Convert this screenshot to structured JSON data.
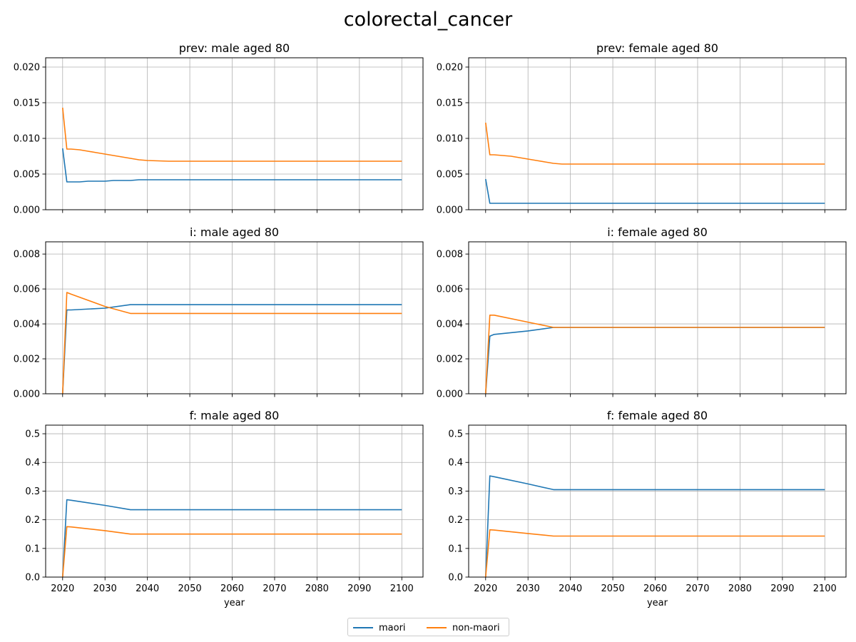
{
  "figure": {
    "suptitle": "colorectal_cancer",
    "legend": [
      {
        "label": "maori",
        "color": "#1f77b4"
      },
      {
        "label": "non-maori",
        "color": "#ff7f0e"
      }
    ]
  },
  "chart_data": [
    {
      "type": "line",
      "title": "prev: male aged 80",
      "xlabel": "",
      "ylabel": "",
      "xlim": [
        2016,
        2105
      ],
      "ylim": [
        0,
        0.0213
      ],
      "xticks": [
        2020,
        2030,
        2040,
        2050,
        2060,
        2070,
        2080,
        2090,
        2100
      ],
      "yticks": [
        0.0,
        0.005,
        0.01,
        0.015,
        0.02
      ],
      "yticklabels": [
        "0.000",
        "0.005",
        "0.010",
        "0.015",
        "0.020"
      ],
      "show_xticklabels": false,
      "grid": true,
      "x": [
        2020,
        2021,
        2022,
        2024,
        2026,
        2028,
        2030,
        2032,
        2034,
        2036,
        2038,
        2040,
        2045,
        2050,
        2060,
        2070,
        2080,
        2090,
        2100
      ],
      "series": [
        {
          "name": "maori",
          "color": "#1f77b4",
          "values": [
            0.0086,
            0.0039,
            0.0039,
            0.0039,
            0.004,
            0.004,
            0.004,
            0.0041,
            0.0041,
            0.0041,
            0.0042,
            0.0042,
            0.0042,
            0.0042,
            0.0042,
            0.0042,
            0.0042,
            0.0042,
            0.0042
          ]
        },
        {
          "name": "non-maori",
          "color": "#ff7f0e",
          "values": [
            0.0143,
            0.0085,
            0.0085,
            0.0084,
            0.0082,
            0.008,
            0.0078,
            0.0076,
            0.0074,
            0.0072,
            0.007,
            0.0069,
            0.0068,
            0.0068,
            0.0068,
            0.0068,
            0.0068,
            0.0068,
            0.0068
          ]
        }
      ]
    },
    {
      "type": "line",
      "title": "prev: female aged 80",
      "xlabel": "",
      "ylabel": "",
      "xlim": [
        2016,
        2105
      ],
      "ylim": [
        0,
        0.0213
      ],
      "xticks": [
        2020,
        2030,
        2040,
        2050,
        2060,
        2070,
        2080,
        2090,
        2100
      ],
      "yticks": [
        0.0,
        0.005,
        0.01,
        0.015,
        0.02
      ],
      "yticklabels": [
        "0.000",
        "0.005",
        "0.010",
        "0.015",
        "0.020"
      ],
      "show_xticklabels": false,
      "grid": true,
      "x": [
        2020,
        2021,
        2022,
        2024,
        2026,
        2028,
        2030,
        2032,
        2034,
        2036,
        2038,
        2040,
        2045,
        2050,
        2060,
        2070,
        2080,
        2090,
        2100
      ],
      "series": [
        {
          "name": "maori",
          "color": "#1f77b4",
          "values": [
            0.0043,
            0.0009,
            0.0009,
            0.0009,
            0.0009,
            0.0009,
            0.0009,
            0.0009,
            0.0009,
            0.0009,
            0.0009,
            0.0009,
            0.0009,
            0.0009,
            0.0009,
            0.0009,
            0.0009,
            0.0009,
            0.0009
          ]
        },
        {
          "name": "non-maori",
          "color": "#ff7f0e",
          "values": [
            0.0122,
            0.0077,
            0.0077,
            0.0076,
            0.0075,
            0.0073,
            0.0071,
            0.0069,
            0.0067,
            0.0065,
            0.0064,
            0.0064,
            0.0064,
            0.0064,
            0.0064,
            0.0064,
            0.0064,
            0.0064,
            0.0064
          ]
        }
      ]
    },
    {
      "type": "line",
      "title": "i: male aged 80",
      "xlabel": "",
      "ylabel": "",
      "xlim": [
        2016,
        2105
      ],
      "ylim": [
        0,
        0.0087
      ],
      "xticks": [
        2020,
        2030,
        2040,
        2050,
        2060,
        2070,
        2080,
        2090,
        2100
      ],
      "yticks": [
        0.0,
        0.002,
        0.004,
        0.006,
        0.008
      ],
      "yticklabels": [
        "0.000",
        "0.002",
        "0.004",
        "0.006",
        "0.008"
      ],
      "show_xticklabels": false,
      "grid": true,
      "x": [
        2020,
        2021,
        2022,
        2030,
        2036,
        2040,
        2050,
        2060,
        2070,
        2080,
        2090,
        2100
      ],
      "series": [
        {
          "name": "maori",
          "color": "#1f77b4",
          "values": [
            0.0,
            0.0048,
            0.0048,
            0.0049,
            0.0051,
            0.0051,
            0.0051,
            0.0051,
            0.0051,
            0.0051,
            0.0051,
            0.0051
          ]
        },
        {
          "name": "non-maori",
          "color": "#ff7f0e",
          "values": [
            0.0,
            0.0058,
            0.0057,
            0.005,
            0.0046,
            0.0046,
            0.0046,
            0.0046,
            0.0046,
            0.0046,
            0.0046,
            0.0046
          ]
        }
      ]
    },
    {
      "type": "line",
      "title": "i: female aged 80",
      "xlabel": "",
      "ylabel": "",
      "xlim": [
        2016,
        2105
      ],
      "ylim": [
        0,
        0.0087
      ],
      "xticks": [
        2020,
        2030,
        2040,
        2050,
        2060,
        2070,
        2080,
        2090,
        2100
      ],
      "yticks": [
        0.0,
        0.002,
        0.004,
        0.006,
        0.008
      ],
      "yticklabels": [
        "0.000",
        "0.002",
        "0.004",
        "0.006",
        "0.008"
      ],
      "show_xticklabels": false,
      "grid": true,
      "x": [
        2020,
        2021,
        2022,
        2030,
        2036,
        2040,
        2050,
        2060,
        2070,
        2080,
        2090,
        2100
      ],
      "series": [
        {
          "name": "maori",
          "color": "#1f77b4",
          "values": [
            0.0,
            0.0033,
            0.0034,
            0.0036,
            0.0038,
            0.0038,
            0.0038,
            0.0038,
            0.0038,
            0.0038,
            0.0038,
            0.0038
          ]
        },
        {
          "name": "non-maori",
          "color": "#ff7f0e",
          "values": [
            0.0,
            0.0045,
            0.0045,
            0.0041,
            0.0038,
            0.0038,
            0.0038,
            0.0038,
            0.0038,
            0.0038,
            0.0038,
            0.0038
          ]
        }
      ]
    },
    {
      "type": "line",
      "title": "f: male aged 80",
      "xlabel": "year",
      "ylabel": "",
      "xlim": [
        2016,
        2105
      ],
      "ylim": [
        0,
        0.53
      ],
      "xticks": [
        2020,
        2030,
        2040,
        2050,
        2060,
        2070,
        2080,
        2090,
        2100
      ],
      "xticklabels": [
        "2020",
        "2030",
        "2040",
        "2050",
        "2060",
        "2070",
        "2080",
        "2090",
        "2100"
      ],
      "yticks": [
        0.0,
        0.1,
        0.2,
        0.3,
        0.4,
        0.5
      ],
      "yticklabels": [
        "0.0",
        "0.1",
        "0.2",
        "0.3",
        "0.4",
        "0.5"
      ],
      "show_xticklabels": true,
      "grid": true,
      "x": [
        2020,
        2021,
        2022,
        2030,
        2036,
        2040,
        2050,
        2060,
        2070,
        2080,
        2090,
        2100
      ],
      "series": [
        {
          "name": "maori",
          "color": "#1f77b4",
          "values": [
            0.0,
            0.27,
            0.268,
            0.25,
            0.235,
            0.235,
            0.235,
            0.235,
            0.235,
            0.235,
            0.235,
            0.235
          ]
        },
        {
          "name": "non-maori",
          "color": "#ff7f0e",
          "values": [
            0.0,
            0.176,
            0.175,
            0.162,
            0.15,
            0.15,
            0.15,
            0.15,
            0.15,
            0.15,
            0.15,
            0.15
          ]
        }
      ]
    },
    {
      "type": "line",
      "title": "f: female aged 80",
      "xlabel": "year",
      "ylabel": "",
      "xlim": [
        2016,
        2105
      ],
      "ylim": [
        0,
        0.53
      ],
      "xticks": [
        2020,
        2030,
        2040,
        2050,
        2060,
        2070,
        2080,
        2090,
        2100
      ],
      "xticklabels": [
        "2020",
        "2030",
        "2040",
        "2050",
        "2060",
        "2070",
        "2080",
        "2090",
        "2100"
      ],
      "yticks": [
        0.0,
        0.1,
        0.2,
        0.3,
        0.4,
        0.5
      ],
      "yticklabels": [
        "0.0",
        "0.1",
        "0.2",
        "0.3",
        "0.4",
        "0.5"
      ],
      "show_xticklabels": true,
      "grid": true,
      "x": [
        2020,
        2021,
        2022,
        2030,
        2036,
        2040,
        2050,
        2060,
        2070,
        2080,
        2090,
        2100
      ],
      "series": [
        {
          "name": "maori",
          "color": "#1f77b4",
          "values": [
            0.0,
            0.353,
            0.35,
            0.325,
            0.305,
            0.305,
            0.305,
            0.305,
            0.305,
            0.305,
            0.305,
            0.305
          ]
        },
        {
          "name": "non-maori",
          "color": "#ff7f0e",
          "values": [
            0.0,
            0.165,
            0.164,
            0.152,
            0.143,
            0.143,
            0.143,
            0.143,
            0.143,
            0.143,
            0.143,
            0.143
          ]
        }
      ]
    }
  ]
}
